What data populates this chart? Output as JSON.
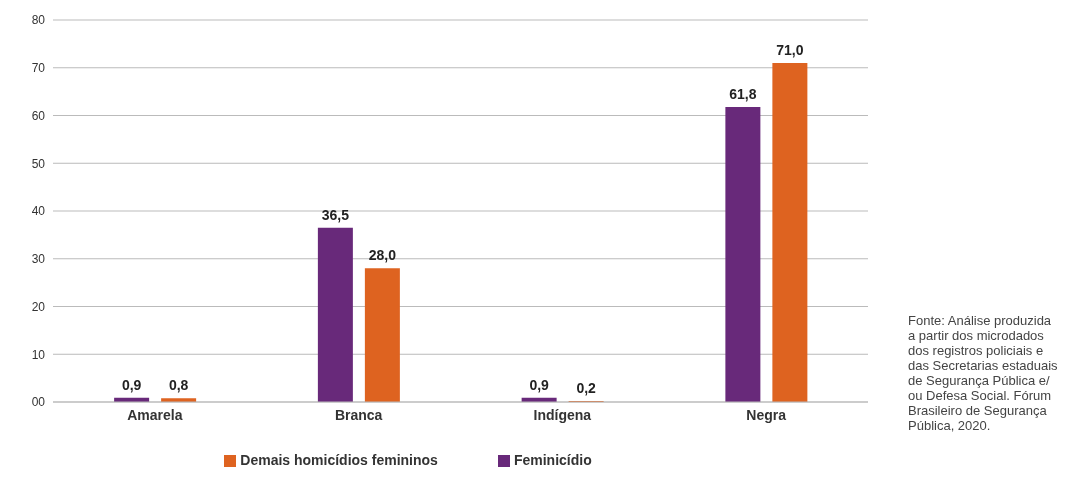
{
  "chart_data": {
    "type": "bar",
    "categories": [
      "Amarela",
      "Branca",
      "Indígena",
      "Negra"
    ],
    "series": [
      {
        "name": "Feminicídio",
        "color": "#68297a",
        "values": [
          0.9,
          36.5,
          0.9,
          61.8
        ],
        "value_labels": [
          "0,9",
          "36,5",
          "0,9",
          "61,8"
        ]
      },
      {
        "name": "Demais homicídios femininos",
        "color": "#de6320",
        "values": [
          0.8,
          28.0,
          0.2,
          71.0
        ],
        "value_labels": [
          "0,8",
          "28,0",
          "0,2",
          "71,0"
        ]
      }
    ],
    "ylim": [
      0,
      80
    ],
    "yticks": [
      {
        "value": 0,
        "label": "00"
      },
      10,
      20,
      30,
      40,
      50,
      60,
      70,
      80
    ],
    "grid": "y",
    "legend": "bottom",
    "annotations": [
      "Fonte: Análise produzida a partir dos microdados dos registros policiais e das Secretarias estaduais de Segurança Pública e/ ou Defesa Social. Fórum Brasileiro de Segurança Pública, 2020."
    ]
  }
}
